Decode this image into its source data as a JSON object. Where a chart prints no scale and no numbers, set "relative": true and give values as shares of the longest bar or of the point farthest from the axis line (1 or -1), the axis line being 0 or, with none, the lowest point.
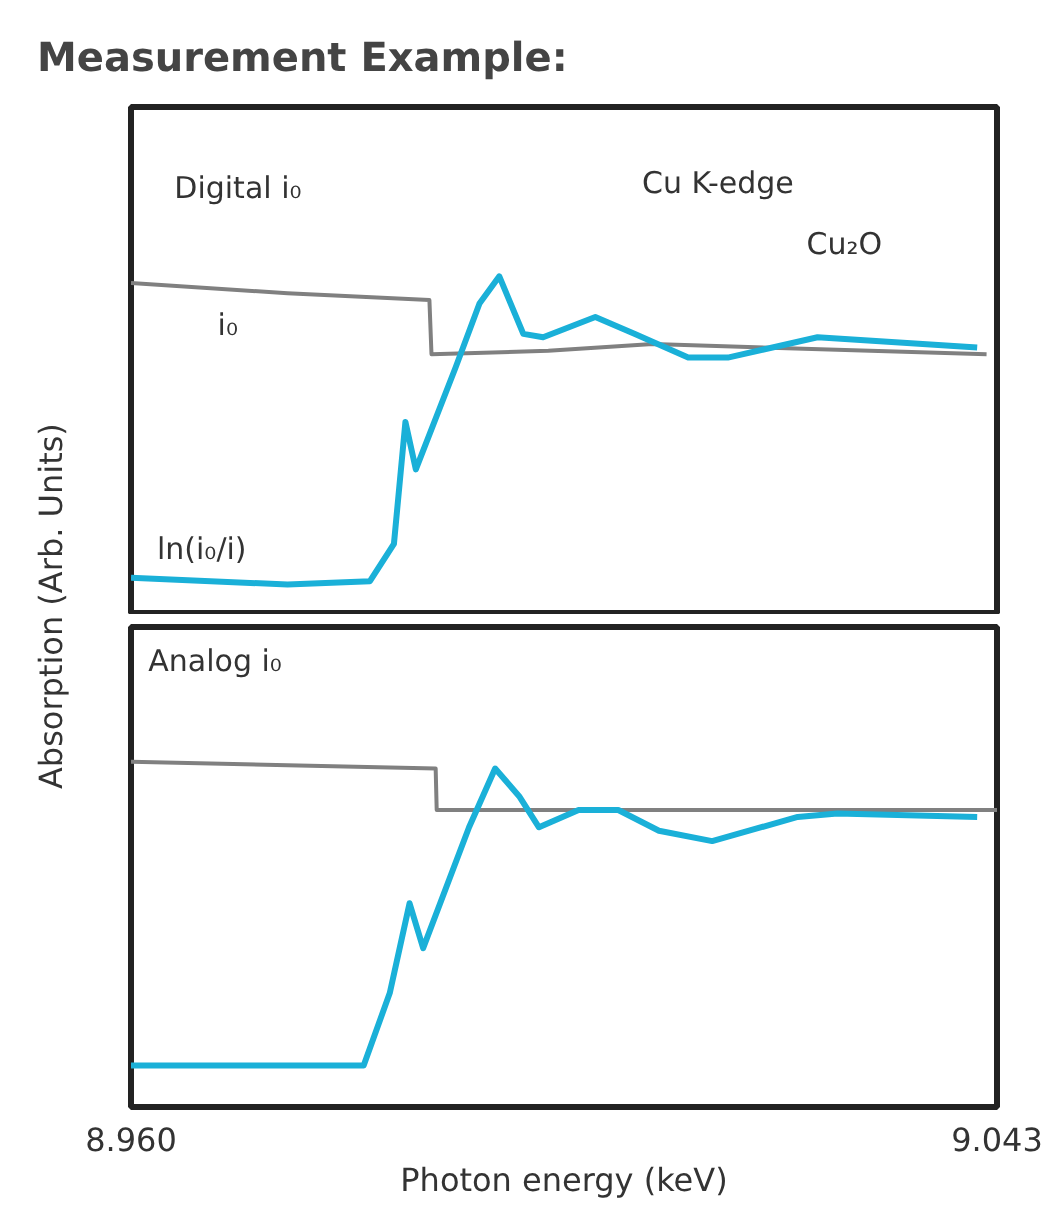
{
  "chart_data": [
    {
      "type": "line",
      "title": "Measurement Example:",
      "ylabel": "Absorption  (Arb. Units)",
      "relative": true,
      "xlim": [
        8.96,
        9.043
      ],
      "tick_labels": false,
      "annotations": [
        "Digital i₀",
        "Cu K-edge",
        "Cu₂O"
      ],
      "series": [
        {
          "name": "i₀",
          "color": "#808080",
          "x": [
            8.96,
            8.975,
            8.9886,
            8.9888,
            9.0,
            9.01,
            9.042
          ],
          "values": [
            0.98,
            0.95,
            0.93,
            0.77,
            0.78,
            0.8,
            0.77
          ]
        },
        {
          "name": "ln(i₀/i)",
          "color": "#1ab0d8",
          "x": [
            8.96,
            8.975,
            8.9829,
            8.9852,
            8.9863,
            8.9873,
            8.9911,
            8.9934,
            8.9953,
            8.9976,
            8.9995,
            9.0045,
            9.0083,
            9.0134,
            9.0172,
            9.0258,
            9.0411
          ],
          "values": [
            0.11,
            0.09,
            0.1,
            0.21,
            0.57,
            0.43,
            0.73,
            0.92,
            1.0,
            0.83,
            0.82,
            0.88,
            0.83,
            0.76,
            0.76,
            0.82,
            0.79
          ]
        }
      ]
    },
    {
      "type": "line",
      "xlabel": "Photon energy (keV)",
      "relative": true,
      "xlim": [
        8.96,
        9.043
      ],
      "xticks": [
        {
          "value": 8.96,
          "label": "8.960"
        },
        {
          "value": 9.043,
          "label": "9.043"
        }
      ],
      "tick_labels": "x",
      "annotations": [
        "Analog i₀"
      ],
      "series": [
        {
          "color": "#808080",
          "x": [
            8.96,
            8.975,
            8.9892,
            8.9893,
            9.01,
            9.043
          ],
          "values": [
            1.0,
            0.99,
            0.98,
            0.86,
            0.86,
            0.86
          ]
        },
        {
          "color": "#1ab0d8",
          "x": [
            8.96,
            8.9823,
            8.9848,
            8.9867,
            8.988,
            8.9924,
            8.9949,
            8.9972,
            8.9991,
            9.0029,
            9.0067,
            9.0106,
            9.0157,
            9.0239,
            9.0277,
            9.0411
          ],
          "values": [
            0.12,
            0.12,
            0.33,
            0.59,
            0.46,
            0.81,
            0.98,
            0.9,
            0.81,
            0.86,
            0.86,
            0.8,
            0.77,
            0.84,
            0.85,
            0.84
          ]
        }
      ]
    }
  ]
}
